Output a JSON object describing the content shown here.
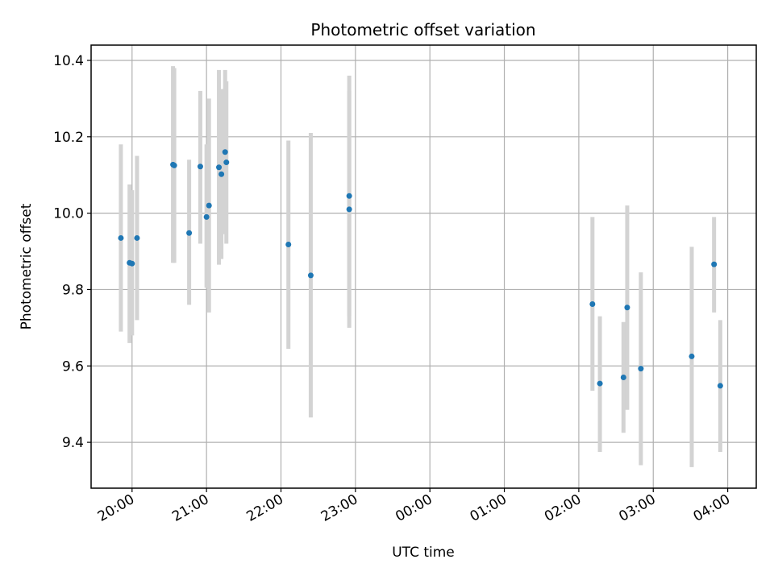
{
  "chart_data": {
    "type": "scatter",
    "title": "Photometric offset variation",
    "xlabel": "UTC time",
    "ylabel": "Photometric offset",
    "x_range": [
      "19:27",
      "04:23"
    ],
    "ylim": [
      9.28,
      10.44
    ],
    "grid": true,
    "x_ticks": [
      {
        "time": "20:00",
        "label": "20:00"
      },
      {
        "time": "21:00",
        "label": "21:00"
      },
      {
        "time": "22:00",
        "label": "22:00"
      },
      {
        "time": "23:00",
        "label": "23:00"
      },
      {
        "time": "00:00",
        "label": "00:00"
      },
      {
        "time": "01:00",
        "label": "01:00"
      },
      {
        "time": "02:00",
        "label": "02:00"
      },
      {
        "time": "03:00",
        "label": "03:00"
      },
      {
        "time": "04:00",
        "label": "04:00"
      }
    ],
    "y_ticks": [
      {
        "value": 9.4,
        "label": "9.4"
      },
      {
        "value": 9.6,
        "label": "9.6"
      },
      {
        "value": 9.8,
        "label": "9.8"
      },
      {
        "value": 10.0,
        "label": "10.0"
      },
      {
        "value": 10.2,
        "label": "10.2"
      },
      {
        "value": 10.4,
        "label": "10.4"
      }
    ],
    "marker_color": "#1f77b4",
    "errorbar_color": "#d3d3d3",
    "points": [
      {
        "time": "19:51",
        "y": 9.935,
        "lo": 9.69,
        "hi": 10.18
      },
      {
        "time": "19:58",
        "y": 9.87,
        "lo": 9.66,
        "hi": 10.075
      },
      {
        "time": "20:00",
        "y": 9.868,
        "lo": 9.68,
        "hi": 10.06
      },
      {
        "time": "20:04",
        "y": 9.935,
        "lo": 9.72,
        "hi": 10.15
      },
      {
        "time": "20:33",
        "y": 10.127,
        "lo": 9.87,
        "hi": 10.385
      },
      {
        "time": "20:34",
        "y": 10.125,
        "lo": 9.87,
        "hi": 10.38
      },
      {
        "time": "20:46",
        "y": 9.948,
        "lo": 9.76,
        "hi": 10.14
      },
      {
        "time": "20:55",
        "y": 10.122,
        "lo": 9.92,
        "hi": 10.32
      },
      {
        "time": "21:00",
        "y": 9.99,
        "lo": 9.805,
        "hi": 10.18
      },
      {
        "time": "21:02",
        "y": 10.02,
        "lo": 9.74,
        "hi": 10.3
      },
      {
        "time": "21:10",
        "y": 10.12,
        "lo": 9.865,
        "hi": 10.375
      },
      {
        "time": "21:12",
        "y": 10.102,
        "lo": 9.88,
        "hi": 10.325
      },
      {
        "time": "21:15",
        "y": 10.16,
        "lo": 9.945,
        "hi": 10.375
      },
      {
        "time": "21:16",
        "y": 10.133,
        "lo": 9.92,
        "hi": 10.345
      },
      {
        "time": "22:06",
        "y": 9.918,
        "lo": 9.645,
        "hi": 10.19
      },
      {
        "time": "22:24",
        "y": 9.837,
        "lo": 9.465,
        "hi": 10.21
      },
      {
        "time": "22:55",
        "y": 10.045,
        "lo": 9.73,
        "hi": 10.36
      },
      {
        "time": "22:55",
        "y": 10.01,
        "lo": 9.7,
        "hi": 10.32
      },
      {
        "time": "02:11",
        "y": 9.762,
        "lo": 9.535,
        "hi": 9.99
      },
      {
        "time": "02:17",
        "y": 9.554,
        "lo": 9.375,
        "hi": 9.73
      },
      {
        "time": "02:36",
        "y": 9.57,
        "lo": 9.425,
        "hi": 9.715
      },
      {
        "time": "02:39",
        "y": 9.753,
        "lo": 9.485,
        "hi": 10.02
      },
      {
        "time": "02:50",
        "y": 9.593,
        "lo": 9.34,
        "hi": 9.845
      },
      {
        "time": "03:31",
        "y": 9.625,
        "lo": 9.335,
        "hi": 9.912
      },
      {
        "time": "03:49",
        "y": 9.866,
        "lo": 9.74,
        "hi": 9.99
      },
      {
        "time": "03:54",
        "y": 9.548,
        "lo": 9.375,
        "hi": 9.72
      }
    ]
  }
}
